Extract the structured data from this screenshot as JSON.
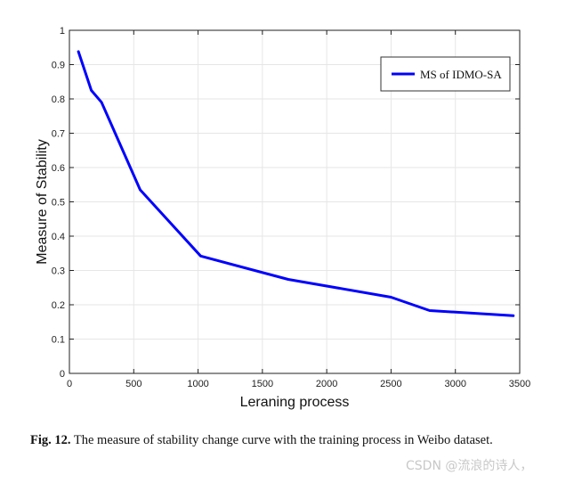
{
  "chart_data": {
    "type": "line",
    "title": "",
    "xlabel": "Leraning process",
    "ylabel": "Measure of Stability",
    "xlim": [
      0,
      3500
    ],
    "ylim": [
      0,
      1
    ],
    "xticks": [
      0,
      500,
      1000,
      1500,
      2000,
      2500,
      3000,
      3500
    ],
    "yticks": [
      0,
      0.1,
      0.2,
      0.3,
      0.4,
      0.5,
      0.6,
      0.7,
      0.8,
      0.9,
      1
    ],
    "xtick_labels": [
      "0",
      "500",
      "1000",
      "1500",
      "2000",
      "2500",
      "3000",
      "3500"
    ],
    "ytick_labels": [
      "0",
      "0.1",
      "0.2",
      "0.3",
      "0.4",
      "0.5",
      "0.6",
      "0.7",
      "0.8",
      "0.9",
      "1"
    ],
    "grid": true,
    "legend_position": "top-right",
    "series": [
      {
        "name": "MS of IDMO-SA",
        "color": "#0000ff",
        "x": [
          70,
          170,
          250,
          550,
          1020,
          1700,
          2500,
          2800,
          3450
        ],
        "y": [
          0.938,
          0.825,
          0.79,
          0.535,
          0.342,
          0.274,
          0.222,
          0.183,
          0.168
        ]
      }
    ]
  },
  "caption": {
    "label": "Fig. 12.",
    "text": "The measure of stability change curve with the training process in Weibo dataset."
  },
  "watermark": "CSDN @流浪的诗人，"
}
